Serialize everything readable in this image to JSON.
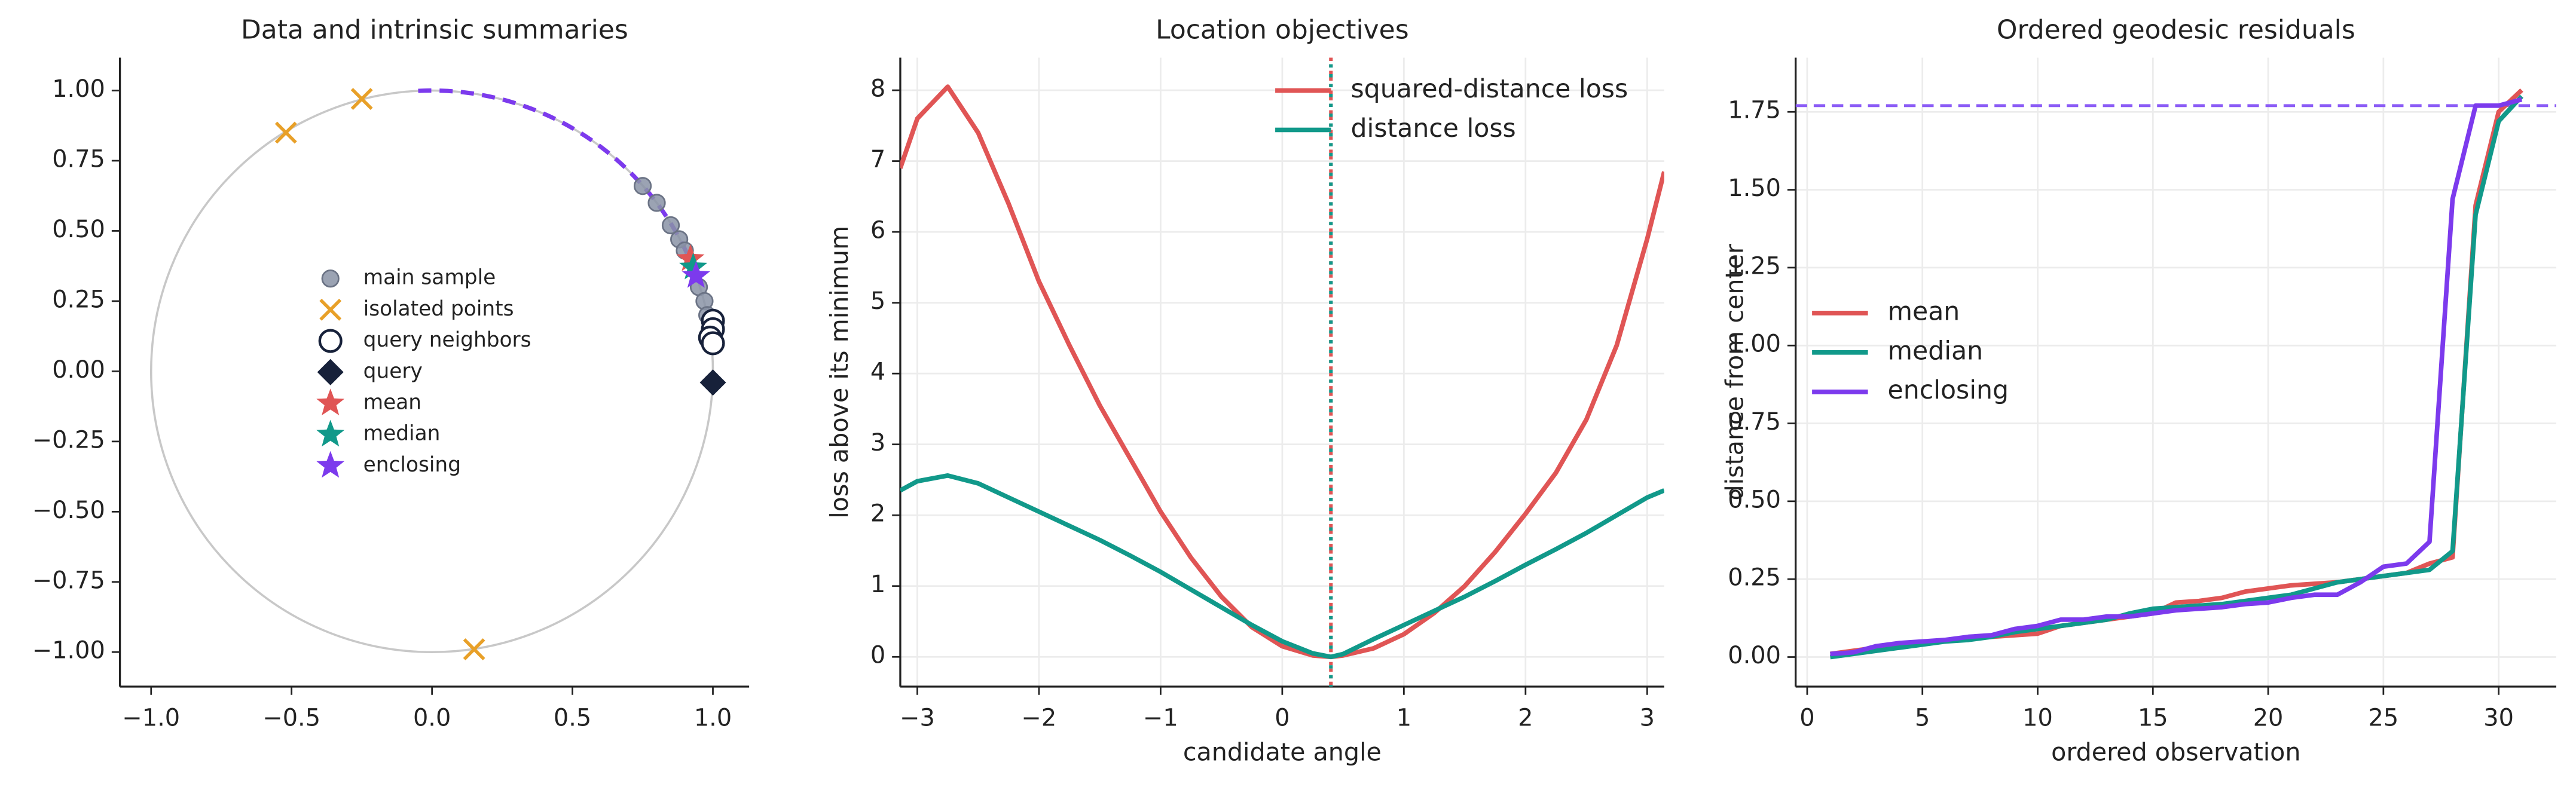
{
  "chart_data": [
    {
      "type": "scatter",
      "title": "Data and intrinsic summaries",
      "xlim": [
        -1.111,
        1.129
      ],
      "ylim": [
        -1.123,
        1.117
      ],
      "xticks": [
        {
          "value": -1.0,
          "label": "−1.0"
        },
        {
          "value": -0.5,
          "label": "−0.5"
        },
        {
          "value": 0.0,
          "label": "0.0"
        },
        {
          "value": 0.5,
          "label": "0.5"
        },
        {
          "value": 1.0,
          "label": "1.0"
        }
      ],
      "yticks": [
        {
          "value": -1.0,
          "label": "−1.00"
        },
        {
          "value": -0.75,
          "label": "−0.75"
        },
        {
          "value": -0.5,
          "label": "−0.50"
        },
        {
          "value": -0.25,
          "label": "−0.25"
        },
        {
          "value": 0.0,
          "label": "0.00"
        },
        {
          "value": 0.25,
          "label": "0.25"
        },
        {
          "value": 0.5,
          "label": "0.50"
        },
        {
          "value": 0.75,
          "label": "0.75"
        },
        {
          "value": 1.0,
          "label": "1.00"
        }
      ],
      "grid": false,
      "legend": "center",
      "reference_circle": {
        "radius": 1,
        "color": "#c8c8c8"
      },
      "arc": {
        "start_angle": 1.62,
        "end_angle": 0.36,
        "color": "#7c3aed",
        "dashed": true
      },
      "series": [
        {
          "name": "main sample",
          "marker": "circle",
          "color": "#8a93a6",
          "x": [
            0.75,
            0.8,
            0.85,
            0.88,
            0.9,
            0.95,
            0.97,
            0.98,
            0.99
          ],
          "y": [
            0.66,
            0.6,
            0.52,
            0.47,
            0.43,
            0.3,
            0.25,
            0.2,
            0.15
          ]
        },
        {
          "name": "isolated points",
          "marker": "x",
          "color": "#e8a028",
          "x": [
            -0.52,
            -0.25,
            0.15
          ],
          "y": [
            0.85,
            0.97,
            -0.99
          ]
        },
        {
          "name": "query neighbors",
          "marker": "open-circle",
          "color": "#17213a",
          "x": [
            1.0,
            1.0,
            0.99,
            1.0
          ],
          "y": [
            0.18,
            0.15,
            0.12,
            0.1
          ]
        },
        {
          "name": "query",
          "marker": "diamond",
          "color": "#17213a",
          "x": [
            1.0
          ],
          "y": [
            -0.04
          ]
        },
        {
          "name": "mean",
          "marker": "star",
          "color": "#e05555",
          "x": [
            0.92
          ],
          "y": [
            0.4
          ]
        },
        {
          "name": "median",
          "marker": "star",
          "color": "#11998a",
          "x": [
            0.93
          ],
          "y": [
            0.37
          ]
        },
        {
          "name": "enclosing",
          "marker": "star",
          "color": "#7c3aed",
          "x": [
            0.94
          ],
          "y": [
            0.34
          ]
        }
      ]
    },
    {
      "type": "line",
      "title": "Location objectives",
      "xlabel": "candidate angle",
      "ylabel": "loss above its minimum",
      "xlim": [
        -3.14,
        3.14
      ],
      "ylim": [
        -0.42,
        8.46
      ],
      "xticks": [
        {
          "value": -3,
          "label": "−3"
        },
        {
          "value": -2,
          "label": "−2"
        },
        {
          "value": -1,
          "label": "−1"
        },
        0,
        1,
        2,
        3
      ],
      "yticks": [
        0,
        1,
        2,
        3,
        4,
        5,
        6,
        7,
        8
      ],
      "grid": true,
      "legend": "upper right",
      "x": [
        -3.14,
        -3,
        -2.75,
        -2.5,
        -2.25,
        -2,
        -1.75,
        -1.5,
        -1.25,
        -1,
        -0.75,
        -0.5,
        -0.25,
        0,
        0.25,
        0.4,
        0.5,
        0.75,
        1,
        1.25,
        1.5,
        1.75,
        2,
        2.25,
        2.5,
        2.75,
        3,
        3.14
      ],
      "series": [
        {
          "name": "squared-distance loss",
          "color": "#e05555",
          "values": [
            6.9,
            7.6,
            8.05,
            7.4,
            6.4,
            5.3,
            4.4,
            3.55,
            2.8,
            2.05,
            1.4,
            0.85,
            0.42,
            0.15,
            0.02,
            0,
            0.02,
            0.12,
            0.32,
            0.62,
            1.0,
            1.48,
            2.02,
            2.6,
            3.35,
            4.4,
            5.9,
            6.85
          ]
        },
        {
          "name": "distance loss",
          "color": "#11998a",
          "values": [
            2.35,
            2.48,
            2.56,
            2.45,
            2.25,
            2.05,
            1.85,
            1.65,
            1.43,
            1.2,
            0.95,
            0.7,
            0.45,
            0.22,
            0.05,
            0,
            0.04,
            0.25,
            0.45,
            0.65,
            0.85,
            1.07,
            1.3,
            1.52,
            1.75,
            2.0,
            2.25,
            2.35
          ]
        }
      ],
      "vlines": [
        {
          "x": 0.4,
          "color": "#e05555"
        },
        {
          "x": 0.4,
          "color": "#11998a"
        }
      ]
    },
    {
      "type": "line",
      "title": "Ordered geodesic residuals",
      "xlabel": "ordered observation",
      "ylabel": "distance from center",
      "xlim": [
        -0.5,
        32.5
      ],
      "ylim": [
        -0.095,
        1.924
      ],
      "xticks": [
        0,
        5,
        10,
        15,
        20,
        25,
        30
      ],
      "yticks": [
        {
          "value": 0,
          "label": "0.00"
        },
        {
          "value": 0.25,
          "label": "0.25"
        },
        {
          "value": 0.5,
          "label": "0.50"
        },
        {
          "value": 0.75,
          "label": "0.75"
        },
        {
          "value": 1.0,
          "label": "1.00"
        },
        {
          "value": 1.25,
          "label": "1.25"
        },
        {
          "value": 1.5,
          "label": "1.50"
        },
        {
          "value": 1.75,
          "label": "1.75"
        }
      ],
      "grid": true,
      "legend": "center left",
      "x": [
        1,
        2,
        3,
        4,
        5,
        6,
        7,
        8,
        9,
        10,
        11,
        12,
        13,
        14,
        15,
        16,
        17,
        18,
        19,
        20,
        21,
        22,
        23,
        24,
        25,
        26,
        27,
        28,
        29,
        30,
        31
      ],
      "series": [
        {
          "name": "mean",
          "color": "#e05555",
          "values": [
            0.01,
            0.02,
            0.03,
            0.04,
            0.045,
            0.05,
            0.06,
            0.065,
            0.07,
            0.075,
            0.1,
            0.11,
            0.12,
            0.13,
            0.14,
            0.175,
            0.18,
            0.19,
            0.21,
            0.22,
            0.23,
            0.235,
            0.24,
            0.25,
            0.26,
            0.27,
            0.3,
            0.32,
            1.45,
            1.75,
            1.82
          ]
        },
        {
          "name": "median",
          "color": "#11998a",
          "values": [
            0.0,
            0.01,
            0.02,
            0.03,
            0.04,
            0.05,
            0.055,
            0.065,
            0.08,
            0.09,
            0.1,
            0.11,
            0.12,
            0.14,
            0.155,
            0.16,
            0.165,
            0.17,
            0.18,
            0.19,
            0.2,
            0.22,
            0.24,
            0.25,
            0.26,
            0.27,
            0.28,
            0.34,
            1.42,
            1.72,
            1.8
          ]
        },
        {
          "name": "enclosing",
          "color": "#7c3aed",
          "values": [
            0.01,
            0.015,
            0.035,
            0.045,
            0.05,
            0.055,
            0.065,
            0.07,
            0.09,
            0.1,
            0.12,
            0.12,
            0.13,
            0.13,
            0.14,
            0.15,
            0.155,
            0.16,
            0.17,
            0.175,
            0.19,
            0.2,
            0.2,
            0.24,
            0.29,
            0.3,
            0.37,
            1.47,
            1.77,
            1.77,
            1.79
          ]
        }
      ],
      "hlines": [
        {
          "y": 1.77,
          "color": "#8b5cf6"
        }
      ]
    }
  ]
}
